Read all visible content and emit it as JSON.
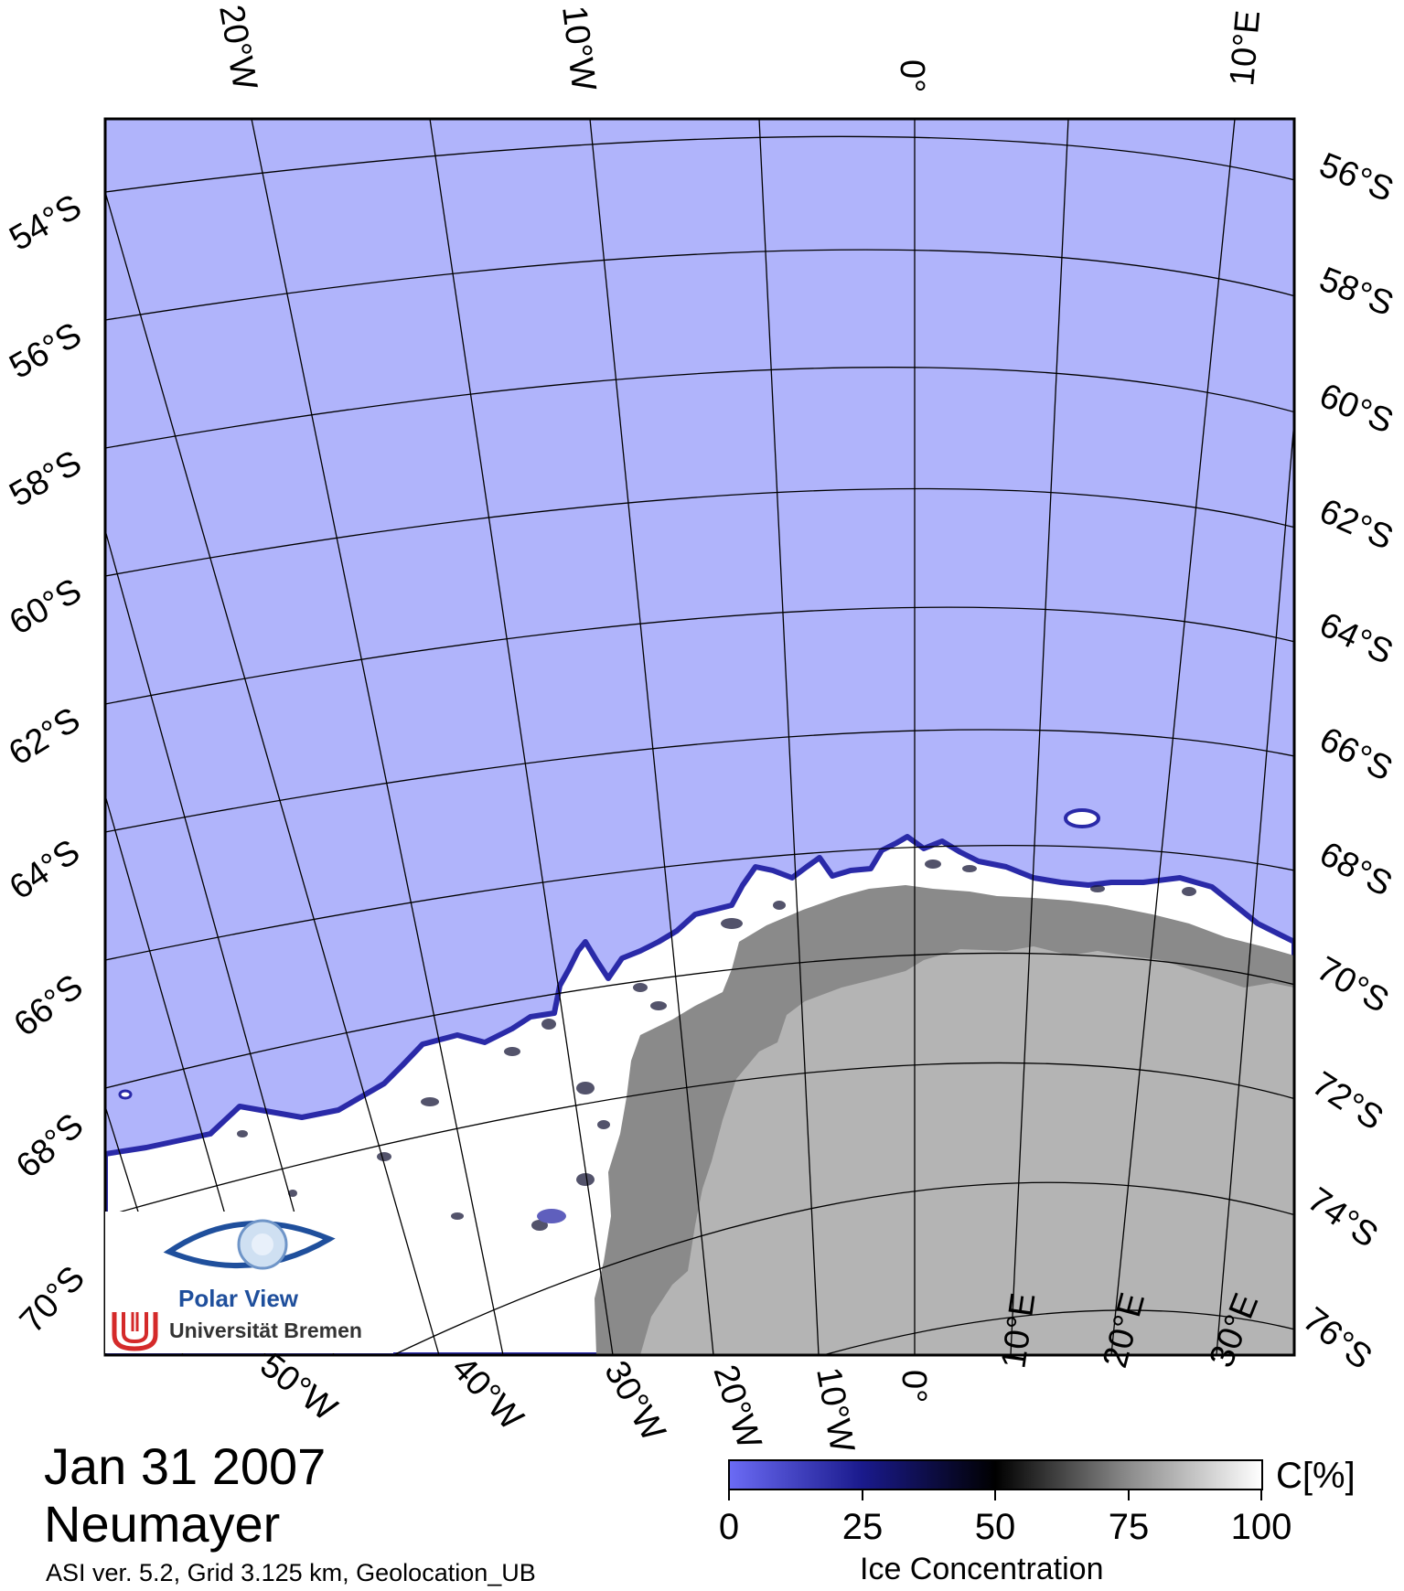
{
  "map": {
    "date": "Jan 31 2007",
    "station": "Neumayer",
    "footnote": "ASI ver. 5.2,  Grid 3.125 km, Geolocation_UB",
    "colors": {
      "open_water": "#b0b4fb",
      "ice_edge": "#2a2aa8",
      "sea_ice": "#ffffff",
      "land": "#b0b0b0",
      "ice_shelf": "#8a8a8a",
      "grid": "#000000"
    },
    "top_lon_labels": [
      "20°W",
      "10°W",
      "0°",
      "10°E"
    ],
    "bottom_lon_labels": [
      "50°W",
      "40°W",
      "30°W",
      "20°W",
      "10°W",
      "0°",
      "10°E",
      "20°E",
      "30°E"
    ],
    "left_lat_labels": [
      "54°S",
      "56°S",
      "58°S",
      "60°S",
      "62°S",
      "64°S",
      "66°S",
      "68°S",
      "70°S"
    ],
    "right_lat_labels": [
      "56°S",
      "58°S",
      "60°S",
      "62°S",
      "64°S",
      "66°S",
      "68°S",
      "70°S",
      "72°S",
      "74°S",
      "76°S"
    ]
  },
  "logo": {
    "name": "Polar View",
    "institution": "Universität Bremen"
  },
  "colorbar": {
    "unit": "C[%]",
    "title": "Ice Concentration",
    "ticks": [
      "0",
      "25",
      "50",
      "75",
      "100"
    ],
    "colors": [
      "#6b6bf5",
      "#1a1a8c",
      "#000000",
      "#8c8c8c",
      "#ffffff"
    ]
  }
}
